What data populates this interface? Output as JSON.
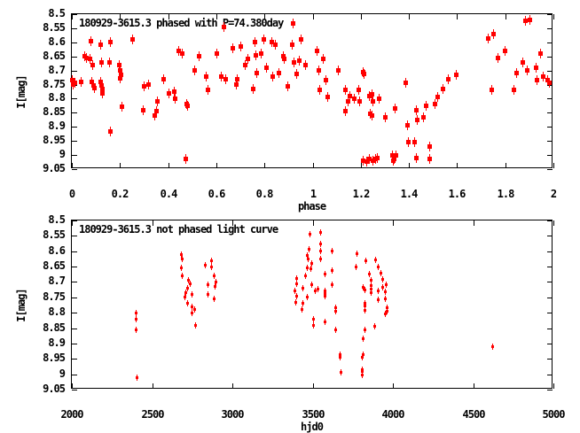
{
  "figure": {
    "background": "#ffffff",
    "point_color": "#ff0000"
  },
  "chart_data": [
    {
      "type": "scatter",
      "title": "180929-3615.3 phased with P=74.380day",
      "xlabel": "phase",
      "ylabel": "I[mag]",
      "xlim": [
        0,
        2
      ],
      "ylim": [
        8.5,
        9.05
      ],
      "y_axis_inverted": true,
      "grid": false,
      "legend_position": "top-left-inside",
      "xtick_values": [
        0,
        0.2,
        0.4,
        0.6,
        0.8,
        1,
        1.2,
        1.4,
        1.6,
        1.8,
        2
      ],
      "xtick_labels": [
        "0",
        "0.2",
        "0.4",
        "0.6",
        "0.8",
        "1",
        "1.2",
        "1.4",
        "1.6",
        "1.8",
        "2"
      ],
      "ytick_values": [
        8.5,
        8.55,
        8.6,
        8.65,
        8.7,
        8.75,
        8.8,
        8.85,
        8.9,
        8.95,
        9,
        9.05
      ],
      "ytick_labels": [
        "8.5",
        "8.55",
        "8.6",
        "8.65",
        "8.7",
        "8.75",
        "8.8",
        "8.85",
        "8.9",
        "8.95",
        "9",
        "9.05"
      ],
      "marker": {
        "shape": "square",
        "size": 5,
        "bar": 11,
        "color": "#ff0000"
      },
      "points": [
        [
          0.0,
          8.735
        ],
        [
          0.006,
          8.75
        ],
        [
          0.013,
          8.745
        ],
        [
          0.037,
          8.74
        ],
        [
          0.055,
          8.65
        ],
        [
          0.061,
          8.657
        ],
        [
          0.076,
          8.66
        ],
        [
          0.08,
          8.595
        ],
        [
          0.086,
          8.68
        ],
        [
          0.084,
          8.74
        ],
        [
          0.09,
          8.752
        ],
        [
          0.094,
          8.763
        ],
        [
          0.119,
          8.608
        ],
        [
          0.123,
          8.67
        ],
        [
          0.12,
          8.74
        ],
        [
          0.124,
          8.752
        ],
        [
          0.126,
          8.765
        ],
        [
          0.128,
          8.78
        ],
        [
          0.156,
          8.67
        ],
        [
          0.161,
          8.6
        ],
        [
          0.16,
          8.915
        ],
        [
          0.196,
          8.68
        ],
        [
          0.2,
          8.7
        ],
        [
          0.204,
          8.715
        ],
        [
          0.199,
          8.727
        ],
        [
          0.209,
          8.83
        ],
        [
          0.252,
          8.59
        ],
        [
          0.295,
          8.84
        ],
        [
          0.301,
          8.755
        ],
        [
          0.319,
          8.75
        ],
        [
          0.344,
          8.86
        ],
        [
          0.35,
          8.845
        ],
        [
          0.356,
          8.81
        ],
        [
          0.381,
          8.73
        ],
        [
          0.405,
          8.78
        ],
        [
          0.424,
          8.775
        ],
        [
          0.43,
          8.8
        ],
        [
          0.442,
          8.63
        ],
        [
          0.46,
          8.64
        ],
        [
          0.473,
          9.015
        ],
        [
          0.476,
          8.82
        ],
        [
          0.481,
          8.825
        ],
        [
          0.509,
          8.7
        ],
        [
          0.528,
          8.65
        ],
        [
          0.559,
          8.72
        ],
        [
          0.565,
          8.77
        ],
        [
          0.601,
          8.64
        ],
        [
          0.62,
          8.72
        ],
        [
          0.632,
          8.545
        ],
        [
          0.638,
          8.73
        ],
        [
          0.669,
          8.62
        ],
        [
          0.682,
          8.75
        ],
        [
          0.687,
          8.73
        ],
        [
          0.7,
          8.615
        ],
        [
          0.72,
          8.68
        ],
        [
          0.73,
          8.66
        ],
        [
          0.755,
          8.765
        ],
        [
          0.759,
          8.598
        ],
        [
          0.763,
          8.645
        ],
        [
          0.767,
          8.71
        ],
        [
          0.786,
          8.64
        ],
        [
          0.799,
          8.59
        ],
        [
          0.81,
          8.69
        ],
        [
          0.829,
          8.6
        ],
        [
          0.835,
          8.72
        ],
        [
          0.847,
          8.61
        ],
        [
          0.859,
          8.71
        ],
        [
          0.878,
          8.65
        ],
        [
          0.882,
          8.66
        ],
        [
          0.896,
          8.755
        ],
        [
          0.914,
          8.61
        ],
        [
          0.921,
          8.67
        ],
        [
          0.933,
          8.712
        ],
        [
          0.945,
          8.665
        ],
        [
          0.951,
          8.59
        ],
        [
          0.97,
          8.68
        ],
        [
          1.019,
          8.63
        ],
        [
          1.025,
          8.7
        ],
        [
          1.031,
          8.77
        ],
        [
          1.043,
          8.66
        ],
        [
          1.056,
          8.735
        ],
        [
          1.062,
          8.795
        ],
        [
          1.105,
          8.7
        ],
        [
          1.135,
          8.77
        ],
        [
          1.135,
          8.845
        ],
        [
          1.148,
          8.81
        ],
        [
          1.154,
          8.79
        ],
        [
          1.172,
          8.8
        ],
        [
          1.191,
          8.77
        ],
        [
          1.197,
          8.81
        ],
        [
          1.209,
          8.705
        ],
        [
          1.215,
          8.712
        ],
        [
          1.21,
          9.02
        ],
        [
          1.225,
          9.022
        ],
        [
          1.235,
          9.015
        ],
        [
          1.25,
          9.02
        ],
        [
          1.26,
          9.015
        ],
        [
          1.268,
          9.01
        ],
        [
          1.234,
          8.79
        ],
        [
          1.24,
          8.855
        ],
        [
          1.246,
          8.785
        ],
        [
          1.245,
          8.86
        ],
        [
          1.252,
          8.81
        ],
        [
          1.277,
          8.8
        ],
        [
          1.301,
          8.865
        ],
        [
          1.33,
          9.0
        ],
        [
          1.335,
          9.02
        ],
        [
          1.34,
          9.015
        ],
        [
          1.345,
          9.002
        ],
        [
          1.341,
          8.835
        ],
        [
          1.387,
          8.745
        ],
        [
          1.394,
          8.895
        ],
        [
          1.396,
          8.955
        ],
        [
          1.424,
          8.955
        ],
        [
          1.43,
          9.01
        ],
        [
          1.43,
          8.84
        ],
        [
          1.436,
          8.875
        ],
        [
          1.46,
          8.865
        ],
        [
          1.473,
          8.825
        ],
        [
          1.486,
          8.97
        ],
        [
          1.488,
          9.015
        ],
        [
          1.51,
          8.82
        ],
        [
          1.52,
          8.795
        ],
        [
          1.54,
          8.765
        ],
        [
          1.565,
          8.73
        ],
        [
          1.596,
          8.715
        ],
        [
          1.73,
          8.585
        ],
        [
          1.743,
          8.77
        ],
        [
          1.75,
          8.57
        ],
        [
          1.768,
          8.655
        ],
        [
          1.8,
          8.63
        ],
        [
          1.835,
          8.77
        ],
        [
          1.847,
          8.71
        ],
        [
          1.872,
          8.67
        ],
        [
          1.884,
          8.525
        ],
        [
          1.89,
          8.7
        ],
        [
          1.903,
          8.52
        ],
        [
          1.93,
          8.69
        ],
        [
          1.932,
          8.735
        ],
        [
          1.945,
          8.64
        ],
        [
          1.957,
          8.72
        ],
        [
          1.975,
          8.735
        ],
        [
          1.982,
          8.745
        ]
      ]
    },
    {
      "type": "scatter",
      "title": "180929-3615.3 not phased light curve",
      "xlabel": "hjd0",
      "ylabel": "I[mag]",
      "xlim": [
        2000,
        5000
      ],
      "ylim": [
        8.5,
        9.05
      ],
      "y_axis_inverted": true,
      "grid": false,
      "legend_position": "top-left-inside",
      "xtick_values": [
        2000,
        2500,
        3000,
        3500,
        4000,
        4500,
        5000
      ],
      "xtick_labels": [
        "2000",
        "2500",
        "3000",
        "3500",
        "4000",
        "4500",
        "5000"
      ],
      "ytick_values": [
        8.5,
        8.55,
        8.6,
        8.65,
        8.7,
        8.75,
        8.8,
        8.85,
        8.9,
        8.95,
        9,
        9.05
      ],
      "ytick_labels": [
        "8.5",
        "8.55",
        "8.6",
        "8.65",
        "8.7",
        "8.75",
        "8.8",
        "8.85",
        "8.9",
        "8.95",
        "9",
        "9.05"
      ],
      "marker": {
        "shape": "square",
        "size": 3,
        "bar": 7,
        "color": "#ff0000"
      },
      "points": [
        [
          2400,
          8.8
        ],
        [
          2402,
          8.822
        ],
        [
          2403,
          8.855
        ],
        [
          2406,
          9.012
        ],
        [
          2681,
          8.61
        ],
        [
          2690,
          8.625
        ],
        [
          2682,
          8.655
        ],
        [
          2690,
          8.68
        ],
        [
          2729,
          8.695
        ],
        [
          2722,
          8.72
        ],
        [
          2709,
          8.735
        ],
        [
          2737,
          8.705
        ],
        [
          2748,
          8.74
        ],
        [
          2703,
          8.75
        ],
        [
          2722,
          8.77
        ],
        [
          2748,
          8.78
        ],
        [
          2764,
          8.79
        ],
        [
          2746,
          8.8
        ],
        [
          2773,
          8.84
        ],
        [
          2833,
          8.645
        ],
        [
          2869,
          8.63
        ],
        [
          2869,
          8.65
        ],
        [
          2884,
          8.68
        ],
        [
          2897,
          8.7
        ],
        [
          2893,
          8.715
        ],
        [
          2847,
          8.71
        ],
        [
          2847,
          8.74
        ],
        [
          2887,
          8.755
        ],
        [
          3391,
          8.73
        ],
        [
          3396,
          8.765
        ],
        [
          3400,
          8.69
        ],
        [
          3400,
          8.705
        ],
        [
          3402,
          8.745
        ],
        [
          3436,
          8.79
        ],
        [
          3440,
          8.72
        ],
        [
          3440,
          8.77
        ],
        [
          3455,
          8.68
        ],
        [
          3468,
          8.615
        ],
        [
          3470,
          8.625
        ],
        [
          3468,
          8.655
        ],
        [
          3468,
          8.75
        ],
        [
          3477,
          8.595
        ],
        [
          3482,
          8.545
        ],
        [
          3490,
          8.657
        ],
        [
          3496,
          8.64
        ],
        [
          3496,
          8.71
        ],
        [
          3507,
          8.822
        ],
        [
          3507,
          8.84
        ],
        [
          3519,
          8.73
        ],
        [
          3532,
          8.723
        ],
        [
          3547,
          8.575
        ],
        [
          3547,
          8.625
        ],
        [
          3549,
          8.6
        ],
        [
          3551,
          8.54
        ],
        [
          3577,
          8.73
        ],
        [
          3577,
          8.737
        ],
        [
          3577,
          8.745
        ],
        [
          3578,
          8.675
        ],
        [
          3578,
          8.83
        ],
        [
          3621,
          8.6
        ],
        [
          3621,
          8.71
        ],
        [
          3623,
          8.663
        ],
        [
          3643,
          8.783
        ],
        [
          3643,
          8.855
        ],
        [
          3645,
          8.796
        ],
        [
          3670,
          8.935
        ],
        [
          3672,
          8.946
        ],
        [
          3676,
          8.994
        ],
        [
          3772,
          8.652
        ],
        [
          3775,
          8.607
        ],
        [
          3807,
          8.946
        ],
        [
          3807,
          8.984
        ],
        [
          3807,
          8.992
        ],
        [
          3807,
          9.003
        ],
        [
          3814,
          8.716
        ],
        [
          3815,
          8.884
        ],
        [
          3815,
          8.935
        ],
        [
          3825,
          8.725
        ],
        [
          3825,
          8.768
        ],
        [
          3825,
          8.779
        ],
        [
          3825,
          8.791
        ],
        [
          3825,
          8.855
        ],
        [
          3830,
          8.632
        ],
        [
          3854,
          8.675
        ],
        [
          3862,
          8.694
        ],
        [
          3866,
          8.713
        ],
        [
          3866,
          8.724
        ],
        [
          3866,
          8.736
        ],
        [
          3888,
          8.845
        ],
        [
          3893,
          8.629
        ],
        [
          3910,
          8.65
        ],
        [
          3910,
          8.728
        ],
        [
          3910,
          8.758
        ],
        [
          3927,
          8.67
        ],
        [
          3935,
          8.692
        ],
        [
          3935,
          8.718
        ],
        [
          3954,
          8.732
        ],
        [
          3954,
          8.754
        ],
        [
          3954,
          8.804
        ],
        [
          3961,
          8.71
        ],
        [
          3964,
          8.783
        ],
        [
          3964,
          8.794
        ],
        [
          4620,
          8.91
        ]
      ]
    }
  ]
}
